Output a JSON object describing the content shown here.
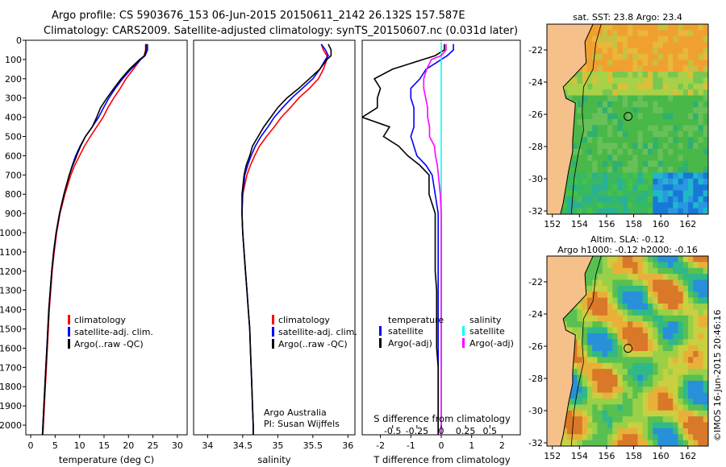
{
  "header": {
    "line1": "Argo profile: CS 5903676_153 06-Jun-2015 20150611_2142 26.132S 157.587E",
    "line2": "Climatology: CARS2009. Satellite-adjusted climatology: synTS_20150607.nc (0.031d later)"
  },
  "colors": {
    "climatology": "#ff0000",
    "satellite": "#0000ff",
    "argo": "#000000",
    "sal_satellite": "#00ffff",
    "sal_argo": "#ff00ff"
  },
  "chart_data": [
    {
      "type": "line",
      "id": "temperature",
      "xlabel": "temperature (deg C)",
      "ylabel": "depth",
      "xlim": [
        -1,
        32
      ],
      "ylim": [
        2050,
        0
      ],
      "xticks": [
        "0",
        "5",
        "10",
        "15",
        "20",
        "25",
        "30"
      ],
      "yticks": [
        "0",
        "100",
        "200",
        "300",
        "400",
        "500",
        "600",
        "700",
        "800",
        "900",
        "1000",
        "1100",
        "1200",
        "1300",
        "1400",
        "1500",
        "1600",
        "1700",
        "1800",
        "1900",
        "2000"
      ],
      "depth": [
        20,
        50,
        80,
        100,
        150,
        200,
        250,
        300,
        350,
        400,
        450,
        500,
        550,
        600,
        650,
        700,
        800,
        900,
        1000,
        1100,
        1200,
        1300,
        1400,
        1500,
        1600,
        1700,
        1800,
        1900,
        2000,
        2050
      ],
      "legend": [
        "climatology",
        "satellite-adj. clim.",
        "Argo(..raw -QC)"
      ],
      "series": [
        {
          "name": "climatology",
          "values": [
            23.5,
            23.5,
            23.2,
            22.5,
            21.0,
            19.5,
            18.3,
            17.0,
            15.8,
            14.8,
            13.5,
            12.2,
            11.0,
            10.0,
            9.0,
            8.2,
            7.0,
            6.0,
            5.3,
            4.8,
            4.4,
            4.1,
            3.8,
            3.6,
            3.4,
            3.2,
            3.0,
            2.8,
            2.6,
            2.5
          ]
        },
        {
          "name": "satellite-adj. clim.",
          "values": [
            23.9,
            23.9,
            23.4,
            22.5,
            20.5,
            18.8,
            17.3,
            16.0,
            14.9,
            13.9,
            12.6,
            11.2,
            10.1,
            9.2,
            8.5,
            7.9,
            6.8,
            5.9,
            5.2,
            4.7,
            4.3,
            4.0,
            3.7,
            3.5,
            3.3,
            3.1,
            2.9,
            2.7,
            2.5,
            2.4
          ]
        },
        {
          "name": "Argo(..raw -QC)",
          "values": [
            23.6,
            23.6,
            23.3,
            22.3,
            20.2,
            18.5,
            17.0,
            15.6,
            14.3,
            13.5,
            12.6,
            11.2,
            10.2,
            9.4,
            8.6,
            7.9,
            6.8,
            5.9,
            5.2,
            4.7,
            4.3,
            4.0,
            3.7,
            3.5,
            3.3,
            3.1,
            2.9,
            2.7,
            2.5,
            2.4
          ]
        }
      ]
    },
    {
      "type": "line",
      "id": "salinity",
      "xlabel": "salinity",
      "xlim": [
        33.8,
        36.1
      ],
      "ylim": [
        2050,
        0
      ],
      "xticks": [
        "34",
        "34.5",
        "35",
        "35.5",
        "36"
      ],
      "depth": [
        20,
        50,
        80,
        100,
        150,
        200,
        250,
        300,
        350,
        400,
        450,
        500,
        550,
        600,
        650,
        700,
        800,
        900,
        1000,
        1100,
        1200,
        1300,
        1400,
        1500,
        1600,
        1700,
        1800,
        1900,
        2000,
        2050
      ],
      "legend": [
        "climatology",
        "satellite-adj. clim.",
        "Argo(..raw -QC)"
      ],
      "note1": "Argo Australia",
      "note2": "PI: Susan Wijffels",
      "series": [
        {
          "name": "climatology",
          "values": [
            35.62,
            35.65,
            35.7,
            35.7,
            35.65,
            35.58,
            35.45,
            35.3,
            35.18,
            35.05,
            34.95,
            34.84,
            34.74,
            34.67,
            34.61,
            34.56,
            34.5,
            34.49,
            34.5,
            34.52,
            34.54,
            34.56,
            34.58,
            34.6,
            34.61,
            34.62,
            34.63,
            34.64,
            34.65,
            34.65
          ]
        },
        {
          "name": "satellite-adj. clim.",
          "values": [
            35.62,
            35.68,
            35.72,
            35.68,
            35.6,
            35.5,
            35.35,
            35.2,
            35.07,
            34.95,
            34.86,
            34.76,
            34.68,
            34.62,
            34.57,
            34.53,
            34.5,
            34.49,
            34.5,
            34.52,
            34.54,
            34.56,
            34.58,
            34.6,
            34.61,
            34.62,
            34.63,
            34.64,
            34.65,
            34.65
          ]
        },
        {
          "name": "Argo(..raw -QC)",
          "values": [
            35.72,
            35.76,
            35.76,
            35.7,
            35.6,
            35.45,
            35.3,
            35.13,
            35.0,
            34.9,
            34.8,
            34.72,
            34.64,
            34.6,
            34.55,
            34.52,
            34.49,
            34.49,
            34.5,
            34.52,
            34.54,
            34.56,
            34.58,
            34.6,
            34.61,
            34.62,
            34.63,
            34.64,
            34.65,
            34.65
          ]
        }
      ]
    },
    {
      "type": "line",
      "id": "differences",
      "xlabel": "T difference from climatology",
      "xlabel_top": "S difference from climatology",
      "xlim": [
        -2.6,
        2.6
      ],
      "ylim": [
        2050,
        0
      ],
      "xticks": [
        "-2",
        "-1",
        "0",
        "1",
        "2"
      ],
      "xticks_top": [
        "-0.5",
        "-0.25",
        "0",
        "0.25",
        "0.5"
      ],
      "depth": [
        20,
        50,
        80,
        100,
        150,
        200,
        250,
        300,
        350,
        400,
        450,
        500,
        550,
        600,
        650,
        700,
        800,
        900,
        1000,
        1100,
        1200,
        1300,
        1400,
        1500,
        1600,
        1700,
        1800,
        1900,
        2000,
        2050
      ],
      "legend_t_title": "temperature",
      "legend_s_title": "salinity",
      "legend_t": [
        "satellite",
        "Argo(-adj)"
      ],
      "legend_s": [
        "satellite",
        "Argo(-adj)"
      ],
      "series": [
        {
          "name": "T satellite",
          "values": [
            0.4,
            0.4,
            0.2,
            0.0,
            -0.5,
            -0.7,
            -1.0,
            -1.0,
            -0.9,
            -0.9,
            -0.9,
            -1.0,
            -0.9,
            -0.8,
            -0.5,
            -0.3,
            -0.2,
            -0.1,
            -0.1,
            -0.1,
            -0.1,
            -0.1,
            -0.1,
            -0.1,
            -0.1,
            -0.1,
            -0.1,
            -0.1,
            -0.1,
            -0.1
          ]
        },
        {
          "name": "T Argo(-adj)",
          "values": [
            0.1,
            0.1,
            -0.2,
            -0.6,
            -1.6,
            -2.2,
            -2.0,
            -2.1,
            -2.1,
            -2.6,
            -1.7,
            -1.9,
            -1.4,
            -1.1,
            -0.7,
            -0.4,
            -0.4,
            -0.2,
            -0.2,
            -0.2,
            -0.2,
            -0.15,
            -0.15,
            -0.15,
            -0.15,
            -0.1,
            -0.1,
            -0.1,
            -0.1,
            -0.1
          ]
        },
        {
          "name": "S satellite",
          "values": [
            0.0,
            0.0,
            0.0,
            0.0,
            0.0,
            0.0,
            0.0,
            0.0,
            0.0,
            0.0,
            0.0,
            0.0,
            0.0,
            0.0,
            0.0,
            0.0,
            0.0,
            0.0,
            0.0,
            0.0,
            0.0,
            0.0,
            0.0,
            0.0,
            0.0,
            0.0,
            0.0,
            0.0,
            0.0,
            0.0
          ]
        },
        {
          "name": "S Argo(-adj)",
          "values": [
            0.05,
            0.05,
            0.0,
            -0.1,
            -0.15,
            -0.18,
            -0.18,
            -0.16,
            -0.14,
            -0.14,
            -0.12,
            -0.12,
            -0.07,
            -0.06,
            -0.04,
            -0.03,
            -0.01,
            0.0,
            0.0,
            0.0,
            0.0,
            0.0,
            0.0,
            0.0,
            0.0,
            0.0,
            0.0,
            0.0,
            0.0,
            0.0
          ]
        }
      ]
    },
    {
      "type": "heatmap",
      "id": "sst-map",
      "title": "sat. SST: 23.8  Argo: 23.4",
      "xticks": [
        "152",
        "154",
        "156",
        "158",
        "160",
        "162"
      ],
      "yticks": [
        "-22",
        "-24",
        "-26",
        "-28",
        "-30",
        "-32"
      ],
      "marker": {
        "lon": 157.587,
        "lat": -26.132
      }
    },
    {
      "type": "heatmap",
      "id": "sla-map",
      "title1": "Altim. SLA: -0.12",
      "title2": "Argo h1000: -0.12 h2000: -0.16",
      "xticks": [
        "152",
        "154",
        "156",
        "158",
        "160",
        "162"
      ],
      "yticks": [
        "-22",
        "-24",
        "-26",
        "-28",
        "-30",
        "-32"
      ],
      "marker": {
        "lon": 157.587,
        "lat": -26.132
      }
    }
  ],
  "credit": "©IMOS 16-Jun-2015 20:46:16"
}
